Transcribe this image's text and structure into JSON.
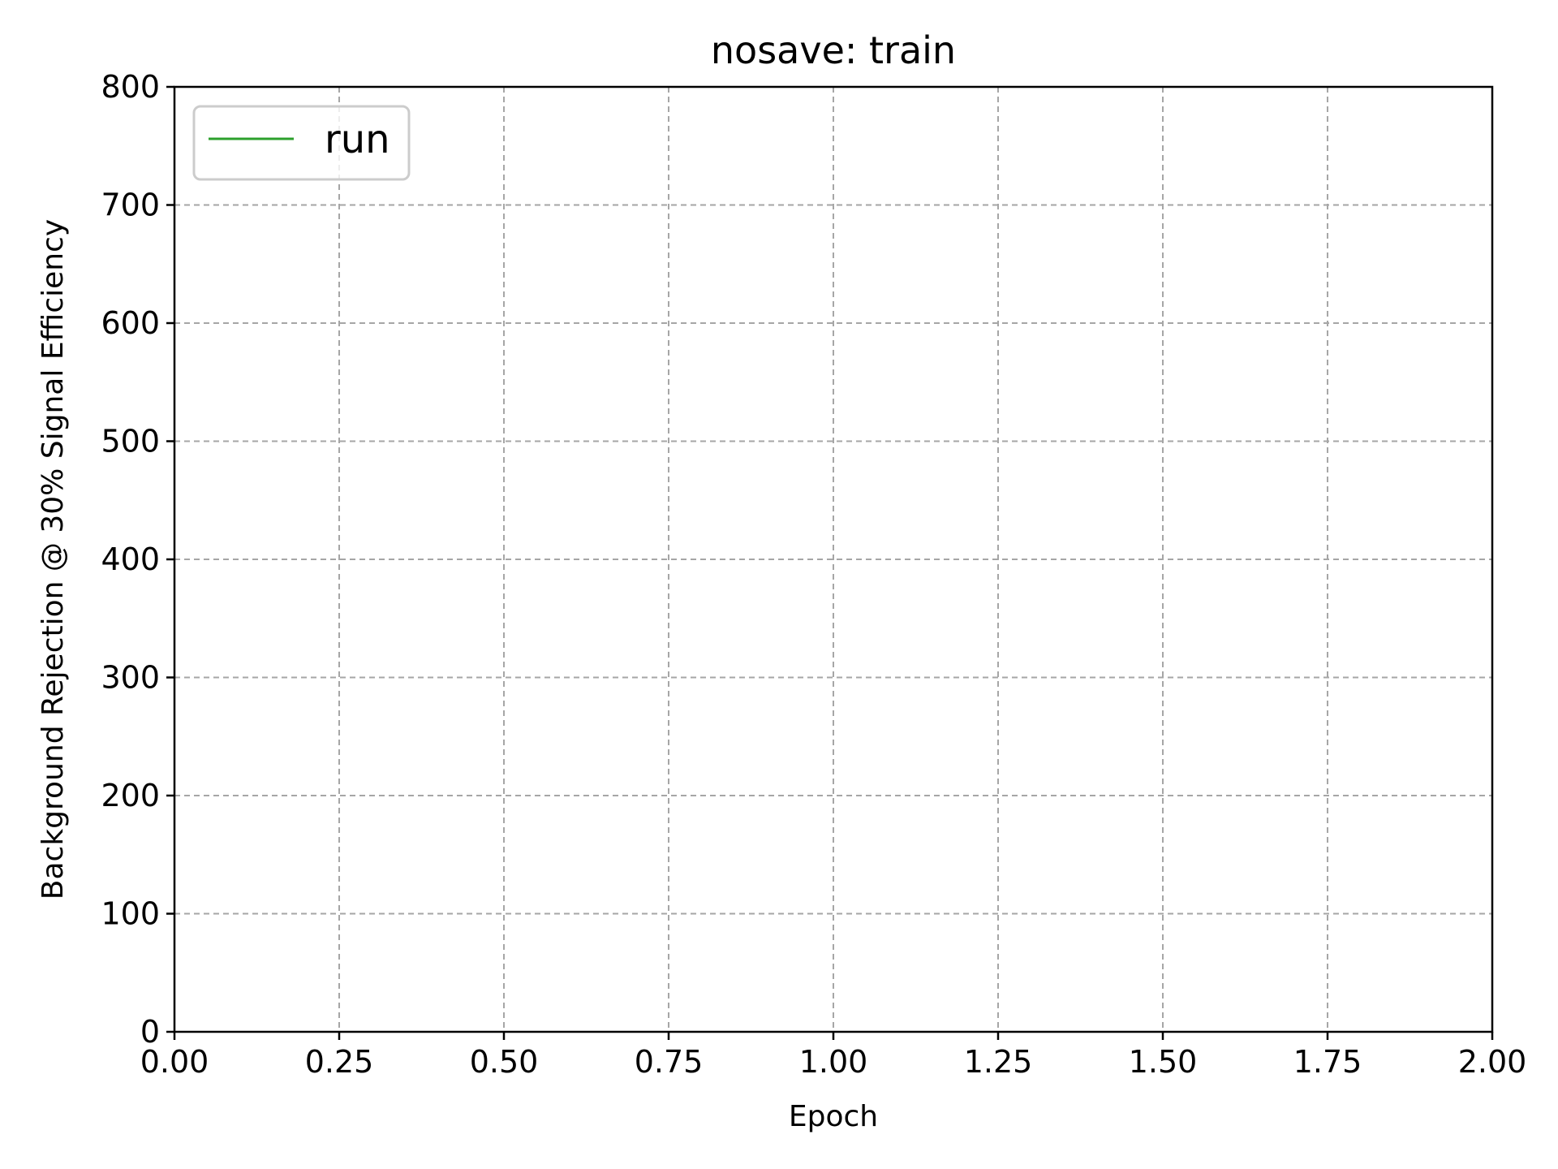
{
  "chart_data": {
    "type": "line",
    "title": "nosave: train",
    "xlabel": "Epoch",
    "ylabel": "Background Rejection @ 30% Signal Efficiency",
    "xlim": [
      0,
      2
    ],
    "ylim": [
      0,
      800
    ],
    "x_ticks": [
      0,
      0.25,
      0.5,
      0.75,
      1.0,
      1.25,
      1.5,
      1.75,
      2.0
    ],
    "x_tick_labels": [
      "0.00",
      "0.25",
      "0.50",
      "0.75",
      "1.00",
      "1.25",
      "1.50",
      "1.75",
      "2.00"
    ],
    "y_ticks": [
      0,
      100,
      200,
      300,
      400,
      500,
      600,
      700,
      800
    ],
    "y_tick_labels": [
      "0",
      "100",
      "200",
      "300",
      "400",
      "500",
      "600",
      "700",
      "800"
    ],
    "grid": true,
    "legend_position": "upper-left",
    "series": [
      {
        "name": "run",
        "color": "#2ca02c",
        "x": [],
        "y": []
      }
    ]
  }
}
